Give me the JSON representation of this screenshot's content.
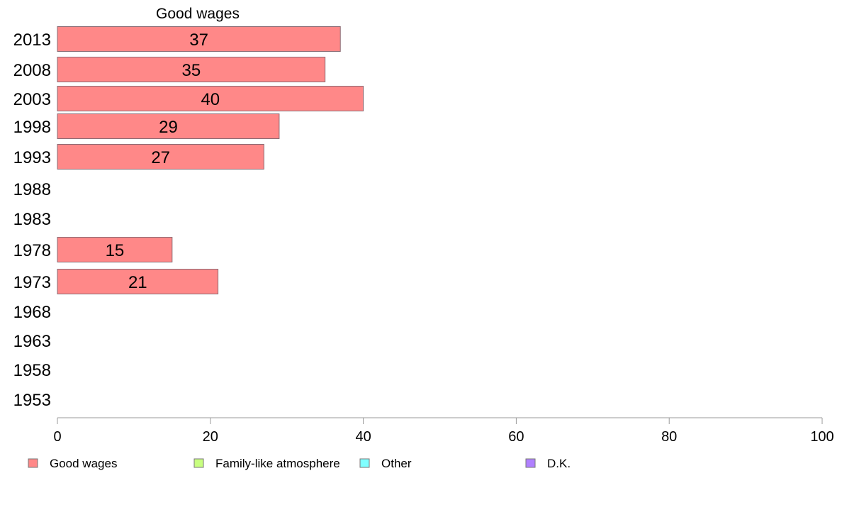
{
  "chart_data": {
    "type": "bar",
    "orientation": "horizontal",
    "title": "Good wages",
    "categories": [
      "2013",
      "2008",
      "2003",
      "1998",
      "1993",
      "1988",
      "1983",
      "1978",
      "1973",
      "1968",
      "1963",
      "1958",
      "1953"
    ],
    "series": [
      {
        "name": "Good wages",
        "color": "#ff8888",
        "values": [
          37,
          35,
          40,
          29,
          27,
          null,
          null,
          15,
          21,
          null,
          null,
          null,
          null
        ]
      }
    ],
    "xlim": [
      0,
      100
    ],
    "xticks": [
      0,
      20,
      40,
      60,
      80,
      100
    ],
    "grid": false,
    "legend": {
      "placement": "bottom",
      "items": [
        {
          "label": "Good wages",
          "color": "#ff8888"
        },
        {
          "label": "Family-like atmosphere",
          "color": "#c8ff80"
        },
        {
          "label": "Other",
          "color": "#80ffff"
        },
        {
          "label": "D.K.",
          "color": "#b080ff"
        }
      ]
    }
  }
}
